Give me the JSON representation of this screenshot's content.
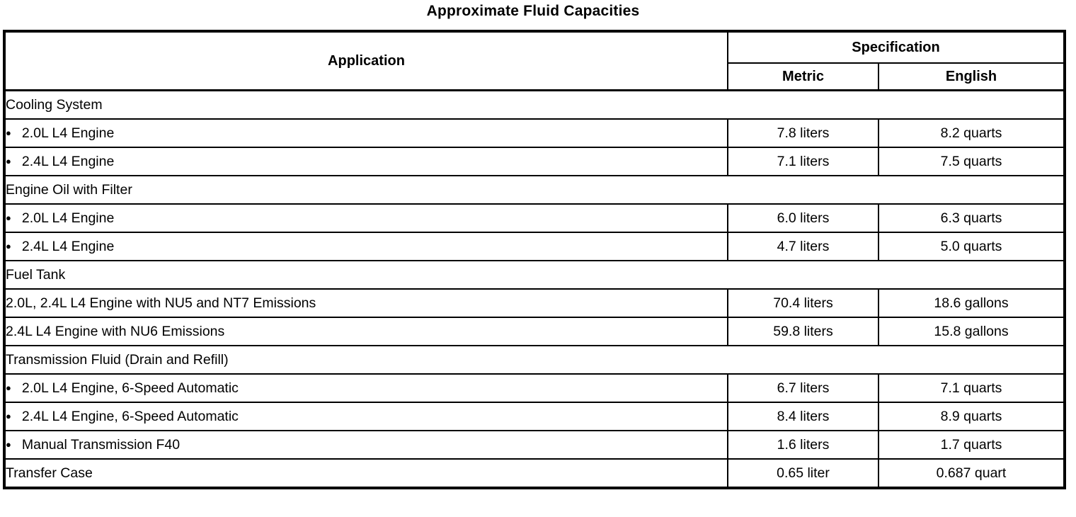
{
  "title": "Approximate Fluid Capacities",
  "table": {
    "bullet_glyph": "●",
    "headers": {
      "application": "Application",
      "specification": "Specification",
      "metric": "Metric",
      "english": "English"
    },
    "rows": [
      {
        "type": "section",
        "label": "Cooling System"
      },
      {
        "type": "item",
        "bullet": true,
        "label": "2.0L L4 Engine",
        "metric": "7.8 liters",
        "english": "8.2 quarts"
      },
      {
        "type": "item",
        "bullet": true,
        "label": "2.4L L4 Engine",
        "metric": "7.1 liters",
        "english": "7.5 quarts"
      },
      {
        "type": "section",
        "label": "Engine Oil with Filter"
      },
      {
        "type": "item",
        "bullet": true,
        "label": "2.0L L4 Engine",
        "metric": "6.0 liters",
        "english": "6.3 quarts"
      },
      {
        "type": "item",
        "bullet": true,
        "label": "2.4L L4 Engine",
        "metric": "4.7 liters",
        "english": "5.0 quarts"
      },
      {
        "type": "section",
        "label": "Fuel Tank"
      },
      {
        "type": "item",
        "bullet": false,
        "label": "2.0L, 2.4L L4 Engine with NU5 and NT7 Emissions",
        "metric": "70.4 liters",
        "english": "18.6 gallons"
      },
      {
        "type": "item",
        "bullet": false,
        "label": "2.4L L4 Engine with NU6 Emissions",
        "metric": "59.8 liters",
        "english": "15.8 gallons"
      },
      {
        "type": "section",
        "label": "Transmission Fluid (Drain and Refill)"
      },
      {
        "type": "item",
        "bullet": true,
        "label": "2.0L L4 Engine, 6-Speed Automatic",
        "metric": "6.7 liters",
        "english": "7.1 quarts"
      },
      {
        "type": "item",
        "bullet": true,
        "label": "2.4L L4 Engine, 6-Speed Automatic",
        "metric": "8.4 liters",
        "english": "8.9 quarts"
      },
      {
        "type": "item",
        "bullet": true,
        "label": "Manual Transmission F40",
        "metric": "1.6 liters",
        "english": "1.7 quarts"
      },
      {
        "type": "item",
        "bullet": false,
        "label": "Transfer Case",
        "metric": "0.65 liter",
        "english": "0.687 quart"
      }
    ]
  }
}
